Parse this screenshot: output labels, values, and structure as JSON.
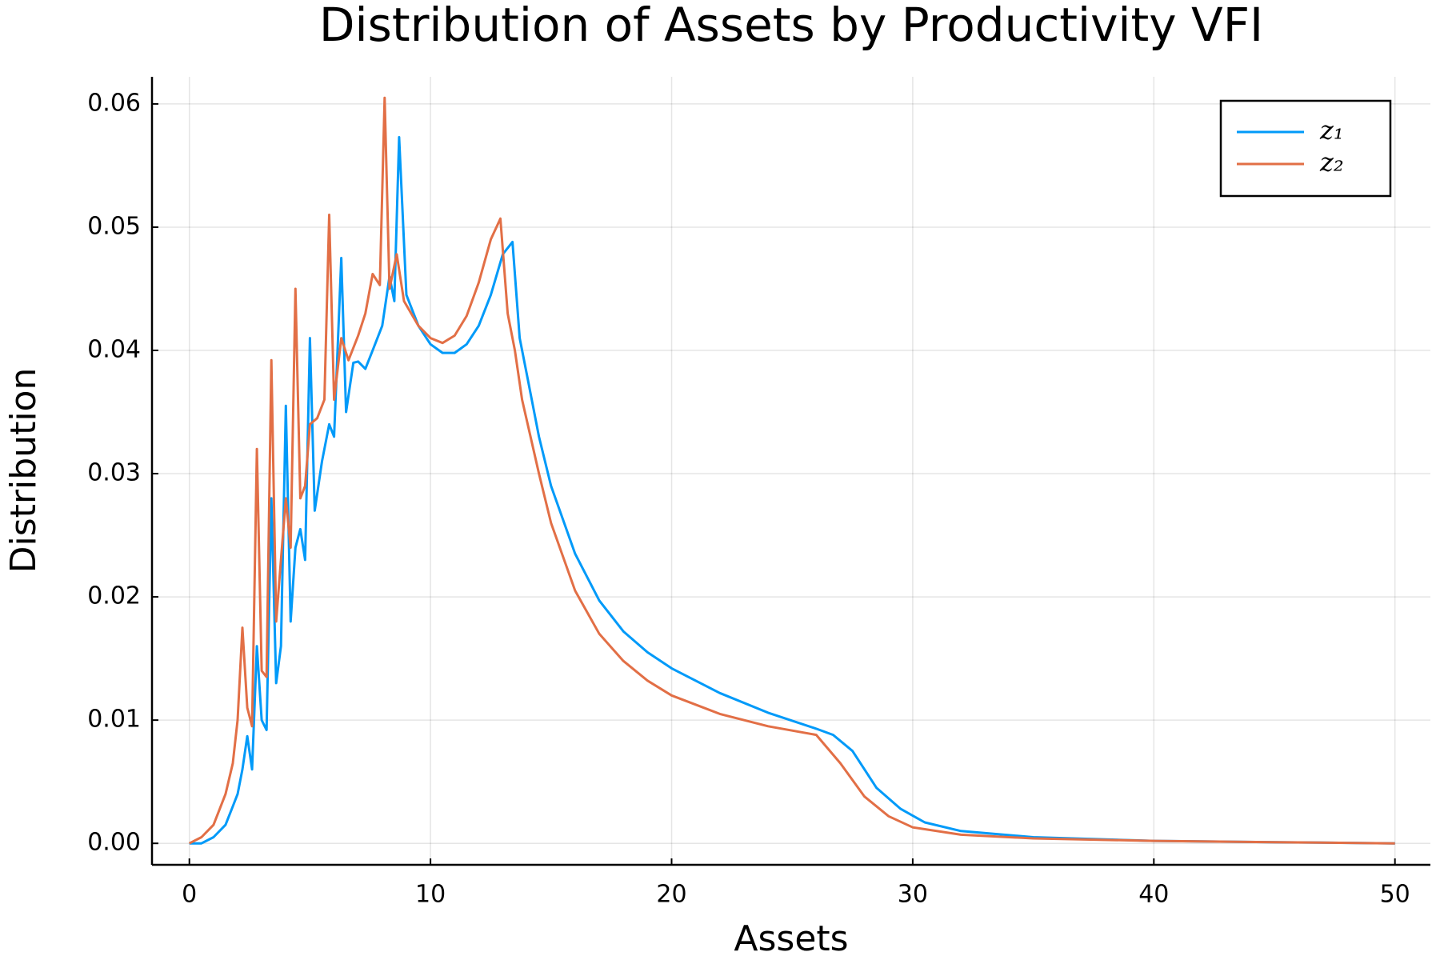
{
  "chart_data": {
    "type": "line",
    "title": "Distribution of Assets by Productivity VFI",
    "xlabel": "Assets",
    "ylabel": "Distribution",
    "xlim": [
      -1.55,
      51.47
    ],
    "ylim": [
      -0.00174,
      0.0622
    ],
    "xticks": [
      0,
      10,
      20,
      30,
      40,
      50
    ],
    "yticks": [
      {
        "value": 0,
        "label": "0.00"
      },
      0.01,
      0.02,
      0.03,
      0.04,
      0.05,
      0.06
    ],
    "grid": true,
    "legend": "top-right",
    "series": [
      {
        "name": "z₁",
        "color": "#009af9",
        "x": [
          0,
          0.5,
          1,
          1.5,
          1.8,
          2,
          2.2,
          2.4,
          2.6,
          2.8,
          3,
          3.2,
          3.4,
          3.6,
          3.8,
          4,
          4.2,
          4.4,
          4.6,
          4.8,
          5,
          5.2,
          5.5,
          5.8,
          6,
          6.3,
          6.5,
          6.8,
          7,
          7.3,
          7.6,
          8,
          8.3,
          8.5,
          8.7,
          9,
          9.5,
          10,
          10.5,
          11,
          11.5,
          12,
          12.5,
          13,
          13.4,
          13.7,
          14,
          14.5,
          15,
          16,
          17,
          18,
          19,
          20,
          22,
          24,
          26,
          26.7,
          27.5,
          28.5,
          29.5,
          30.5,
          32,
          35,
          40,
          45,
          50
        ],
        "values": [
          0,
          0,
          0.0005,
          0.0015,
          0.003,
          0.004,
          0.006,
          0.0087,
          0.006,
          0.016,
          0.01,
          0.0092,
          0.028,
          0.013,
          0.016,
          0.0355,
          0.018,
          0.024,
          0.0255,
          0.023,
          0.041,
          0.027,
          0.031,
          0.034,
          0.033,
          0.0475,
          0.035,
          0.039,
          0.0391,
          0.0385,
          0.04,
          0.042,
          0.046,
          0.044,
          0.0573,
          0.0445,
          0.042,
          0.0405,
          0.0398,
          0.0398,
          0.0405,
          0.042,
          0.0445,
          0.0478,
          0.0488,
          0.041,
          0.038,
          0.033,
          0.029,
          0.0235,
          0.0197,
          0.0172,
          0.0155,
          0.0142,
          0.0122,
          0.0106,
          0.0093,
          0.0088,
          0.0075,
          0.0045,
          0.0028,
          0.0017,
          0.001,
          0.0005,
          0.0002,
          0.0001,
          0
        ]
      },
      {
        "name": "z₂",
        "color": "#e26f46",
        "x": [
          0,
          0.5,
          1,
          1.5,
          1.8,
          2,
          2.2,
          2.4,
          2.6,
          2.8,
          3,
          3.2,
          3.4,
          3.6,
          3.8,
          4,
          4.2,
          4.4,
          4.6,
          4.8,
          5,
          5.3,
          5.6,
          5.8,
          6,
          6.3,
          6.6,
          7,
          7.3,
          7.6,
          7.9,
          8.1,
          8.3,
          8.6,
          8.9,
          9.5,
          10,
          10.5,
          11,
          11.5,
          12,
          12.5,
          12.9,
          13.2,
          13.5,
          13.8,
          14.5,
          15,
          16,
          17,
          18,
          19,
          20,
          22,
          24,
          26,
          27,
          28,
          29,
          30,
          32,
          35,
          40,
          45,
          50
        ],
        "values": [
          0,
          0.0005,
          0.0015,
          0.004,
          0.0065,
          0.01,
          0.0175,
          0.011,
          0.0095,
          0.032,
          0.014,
          0.0135,
          0.0392,
          0.018,
          0.023,
          0.028,
          0.024,
          0.045,
          0.028,
          0.029,
          0.034,
          0.0345,
          0.036,
          0.051,
          0.036,
          0.041,
          0.0392,
          0.0412,
          0.043,
          0.0462,
          0.0453,
          0.0605,
          0.045,
          0.0478,
          0.044,
          0.042,
          0.041,
          0.0406,
          0.0412,
          0.0428,
          0.0455,
          0.049,
          0.0507,
          0.043,
          0.04,
          0.036,
          0.03,
          0.026,
          0.0205,
          0.017,
          0.0148,
          0.0132,
          0.012,
          0.0105,
          0.0095,
          0.0088,
          0.0065,
          0.0038,
          0.0022,
          0.0013,
          0.0007,
          0.0004,
          0.0002,
          0.0001,
          0
        ]
      }
    ]
  }
}
